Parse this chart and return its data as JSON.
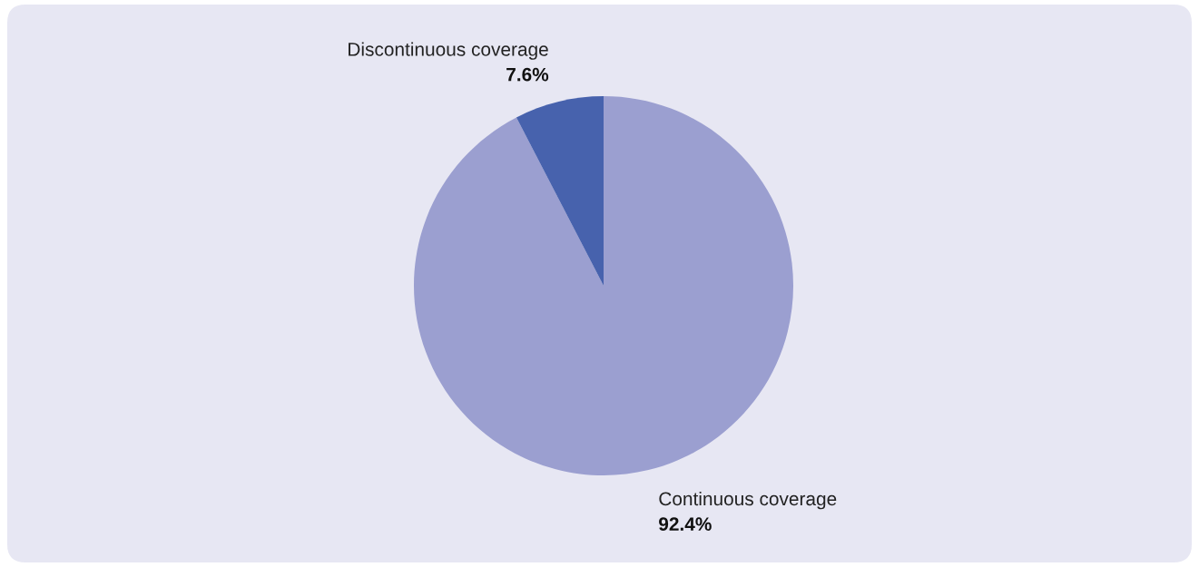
{
  "chart_data": {
    "type": "pie",
    "categories": [
      "Continuous coverage",
      "Discontinuous coverage"
    ],
    "values": [
      92.4,
      7.6
    ],
    "colors": [
      "#9b9fd0",
      "#4762ad"
    ],
    "value_labels": [
      "92.4%",
      "7.6%"
    ]
  }
}
